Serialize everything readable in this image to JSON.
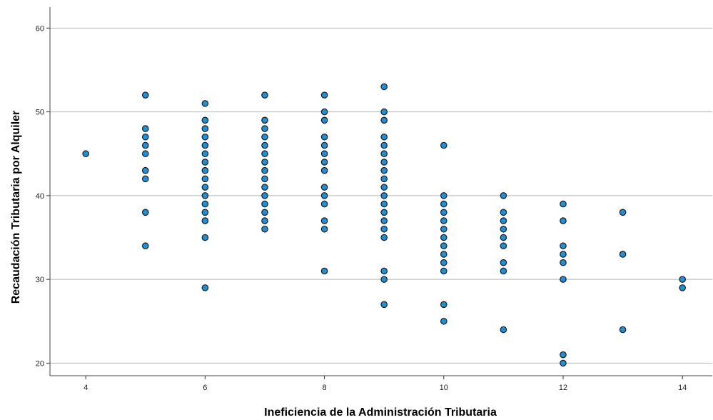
{
  "chart_data": {
    "type": "scatter",
    "title": "",
    "xlabel": "Ineficiencia de la Administración Tributaria",
    "ylabel": "Recaudación Tributaria por Alquiler",
    "xlim": [
      3.4,
      14.5
    ],
    "ylim": [
      18.5,
      62.5
    ],
    "xticks": [
      4,
      6,
      8,
      10,
      12,
      14
    ],
    "yticks": [
      20,
      30,
      40,
      50,
      60
    ],
    "grid": "horizontal",
    "marker_color": "#1f8fd6",
    "marker_edge": "#1a1a1a",
    "points": [
      [
        4,
        45
      ],
      [
        5,
        52
      ],
      [
        5,
        48
      ],
      [
        5,
        47
      ],
      [
        5,
        46
      ],
      [
        5,
        45
      ],
      [
        5,
        43
      ],
      [
        5,
        42
      ],
      [
        5,
        38
      ],
      [
        5,
        34
      ],
      [
        6,
        51
      ],
      [
        6,
        49
      ],
      [
        6,
        48
      ],
      [
        6,
        47
      ],
      [
        6,
        46
      ],
      [
        6,
        45
      ],
      [
        6,
        44
      ],
      [
        6,
        43
      ],
      [
        6,
        42
      ],
      [
        6,
        41
      ],
      [
        6,
        40
      ],
      [
        6,
        39
      ],
      [
        6,
        38
      ],
      [
        6,
        37
      ],
      [
        6,
        35
      ],
      [
        6,
        29
      ],
      [
        7,
        52
      ],
      [
        7,
        49
      ],
      [
        7,
        48
      ],
      [
        7,
        47
      ],
      [
        7,
        46
      ],
      [
        7,
        45
      ],
      [
        7,
        44
      ],
      [
        7,
        43
      ],
      [
        7,
        42
      ],
      [
        7,
        41
      ],
      [
        7,
        40
      ],
      [
        7,
        39
      ],
      [
        7,
        38
      ],
      [
        7,
        37
      ],
      [
        7,
        36
      ],
      [
        8,
        52
      ],
      [
        8,
        50
      ],
      [
        8,
        49
      ],
      [
        8,
        47
      ],
      [
        8,
        46
      ],
      [
        8,
        45
      ],
      [
        8,
        44
      ],
      [
        8,
        43
      ],
      [
        8,
        41
      ],
      [
        8,
        40
      ],
      [
        8,
        39
      ],
      [
        8,
        37
      ],
      [
        8,
        36
      ],
      [
        8,
        31
      ],
      [
        9,
        53
      ],
      [
        9,
        50
      ],
      [
        9,
        49
      ],
      [
        9,
        47
      ],
      [
        9,
        46
      ],
      [
        9,
        45
      ],
      [
        9,
        44
      ],
      [
        9,
        43
      ],
      [
        9,
        42
      ],
      [
        9,
        41
      ],
      [
        9,
        40
      ],
      [
        9,
        39
      ],
      [
        9,
        38
      ],
      [
        9,
        37
      ],
      [
        9,
        36
      ],
      [
        9,
        35
      ],
      [
        9,
        31
      ],
      [
        9,
        30
      ],
      [
        9,
        27
      ],
      [
        10,
        46
      ],
      [
        10,
        40
      ],
      [
        10,
        39
      ],
      [
        10,
        38
      ],
      [
        10,
        37
      ],
      [
        10,
        36
      ],
      [
        10,
        35
      ],
      [
        10,
        34
      ],
      [
        10,
        33
      ],
      [
        10,
        32
      ],
      [
        10,
        31
      ],
      [
        10,
        27
      ],
      [
        10,
        25
      ],
      [
        11,
        40
      ],
      [
        11,
        38
      ],
      [
        11,
        37
      ],
      [
        11,
        36
      ],
      [
        11,
        35
      ],
      [
        11,
        34
      ],
      [
        11,
        32
      ],
      [
        11,
        31
      ],
      [
        11,
        24
      ],
      [
        12,
        39
      ],
      [
        12,
        37
      ],
      [
        12,
        34
      ],
      [
        12,
        33
      ],
      [
        12,
        32
      ],
      [
        12,
        30
      ],
      [
        12,
        21
      ],
      [
        12,
        20
      ],
      [
        13,
        38
      ],
      [
        13,
        33
      ],
      [
        13,
        24
      ],
      [
        14,
        30
      ],
      [
        14,
        29
      ]
    ]
  }
}
